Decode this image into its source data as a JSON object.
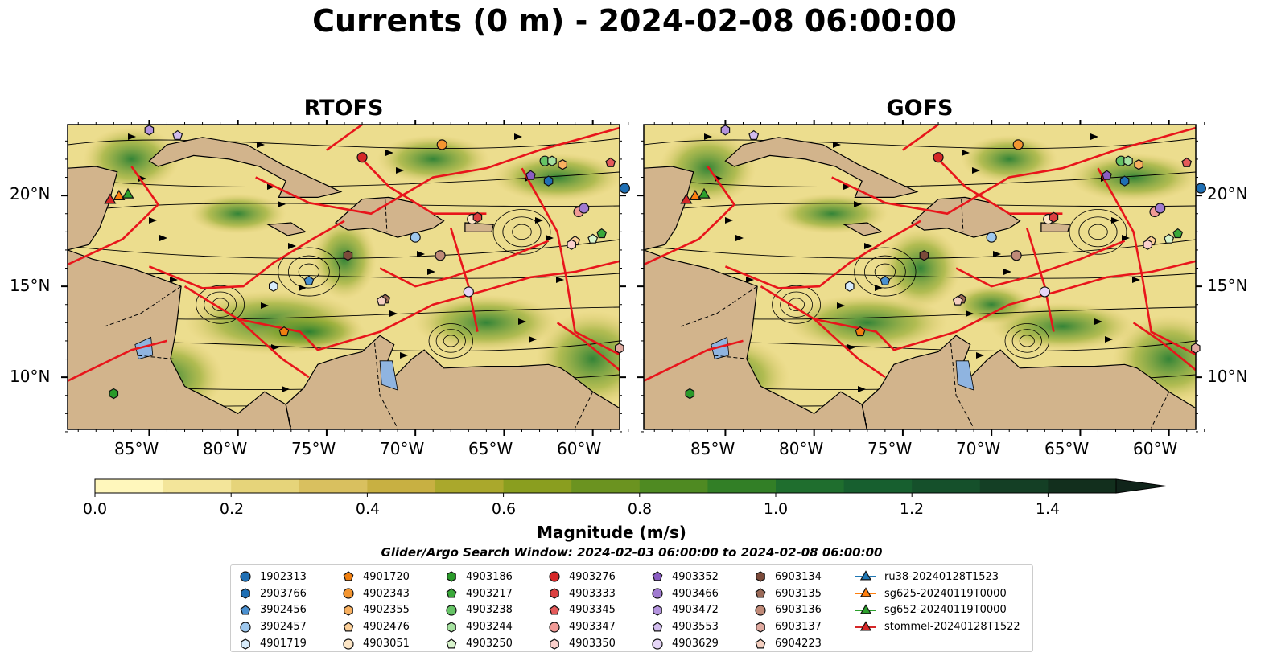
{
  "title": "Currents (0 m) - 2024-02-08 06:00:00",
  "panels": [
    {
      "title": "RTOFS"
    },
    {
      "title": "GOFS"
    }
  ],
  "lon_ticks": [
    "85°W",
    "80°W",
    "75°W",
    "70°W",
    "65°W",
    "60°W"
  ],
  "lat_ticks": [
    "20°N",
    "15°N",
    "10°N"
  ],
  "colorbar": {
    "label": "Magnitude (m/s)",
    "ticks": [
      "0.0",
      "0.2",
      "0.4",
      "0.6",
      "0.8",
      "1.0",
      "1.2",
      "1.4"
    ],
    "range": [
      0.0,
      1.5
    ],
    "extend": "max",
    "colors": [
      "#fff7bc",
      "#f3e59a",
      "#e6d47a",
      "#d9c05f",
      "#c8b042",
      "#aaa82c",
      "#8a9e1f",
      "#6b9320",
      "#4f8a22",
      "#327f26",
      "#1f6e2e",
      "#175f2f",
      "#15502b",
      "#143f25",
      "#122f1d",
      "#10241a"
    ]
  },
  "search_window": "Glider/Argo Search Window: 2024-02-03 06:00:00 to 2024-02-08 06:00:00",
  "legend": {
    "columns": [
      [
        {
          "label": "1902313",
          "marker": "circle",
          "color": "#1f6fb4"
        },
        {
          "label": "2903766",
          "marker": "hexagon",
          "color": "#1f6fb4"
        },
        {
          "label": "3902456",
          "marker": "pentagon",
          "color": "#4a90d0"
        },
        {
          "label": "3902457",
          "marker": "circle",
          "color": "#9ec8ee"
        },
        {
          "label": "4901719",
          "marker": "hexagon",
          "color": "#d8ecfb"
        }
      ],
      [
        {
          "label": "4901720",
          "marker": "pentagon",
          "color": "#f07f10"
        },
        {
          "label": "4902343",
          "marker": "circle",
          "color": "#f39530"
        },
        {
          "label": "4902355",
          "marker": "hexagon",
          "color": "#f8b060"
        },
        {
          "label": "4902476",
          "marker": "pentagon",
          "color": "#fbcf98"
        },
        {
          "label": "4903051",
          "marker": "circle",
          "color": "#fde6c6"
        }
      ],
      [
        {
          "label": "4903186",
          "marker": "hexagon",
          "color": "#2a9a2a"
        },
        {
          "label": "4903217",
          "marker": "pentagon",
          "color": "#3aa83a"
        },
        {
          "label": "4903238",
          "marker": "circle",
          "color": "#66c466"
        },
        {
          "label": "4903244",
          "marker": "hexagon",
          "color": "#a6e2a0"
        },
        {
          "label": "4903250",
          "marker": "pentagon",
          "color": "#d8f4cc"
        }
      ],
      [
        {
          "label": "4903276",
          "marker": "circle",
          "color": "#d62728"
        },
        {
          "label": "4903333",
          "marker": "hexagon",
          "color": "#dc4040"
        },
        {
          "label": "4903345",
          "marker": "pentagon",
          "color": "#e45a5a"
        },
        {
          "label": "4903347",
          "marker": "circle",
          "color": "#f09a96"
        },
        {
          "label": "4903350",
          "marker": "hexagon",
          "color": "#fbd0cc"
        }
      ],
      [
        {
          "label": "4903352",
          "marker": "pentagon",
          "color": "#8a5cc2"
        },
        {
          "label": "4903466",
          "marker": "circle",
          "color": "#a07ad0"
        },
        {
          "label": "4903472",
          "marker": "hexagon",
          "color": "#b494de"
        },
        {
          "label": "4903553",
          "marker": "pentagon",
          "color": "#d2bcee"
        },
        {
          "label": "4903629",
          "marker": "circle",
          "color": "#e6d6f7"
        }
      ],
      [
        {
          "label": "6903134",
          "marker": "hexagon",
          "color": "#7b4a3a"
        },
        {
          "label": "6903135",
          "marker": "pentagon",
          "color": "#9a6a58"
        },
        {
          "label": "6903136",
          "marker": "circle",
          "color": "#c08a78"
        },
        {
          "label": "6903137",
          "marker": "hexagon",
          "color": "#e0aaa0"
        },
        {
          "label": "6904223",
          "marker": "pentagon",
          "color": "#f4cfc0"
        }
      ],
      [
        {
          "label": "ru38-20240128T1523",
          "marker": "triangle-line",
          "color": "#1f77b4"
        },
        {
          "label": "sg625-20240119T0000",
          "marker": "triangle-line",
          "color": "#ff7f0e"
        },
        {
          "label": "sg652-20240119T0000",
          "marker": "triangle-line",
          "color": "#2ca02c"
        },
        {
          "label": "stommel-20240128T1522",
          "marker": "triangle-line",
          "color": "#d62728"
        }
      ]
    ]
  },
  "map_colors": {
    "land": "#d2b48c",
    "lakes": "#8fb4e0",
    "eez_lines": "#e8151b",
    "streamlines": "#000000",
    "coast": "#000000"
  }
}
